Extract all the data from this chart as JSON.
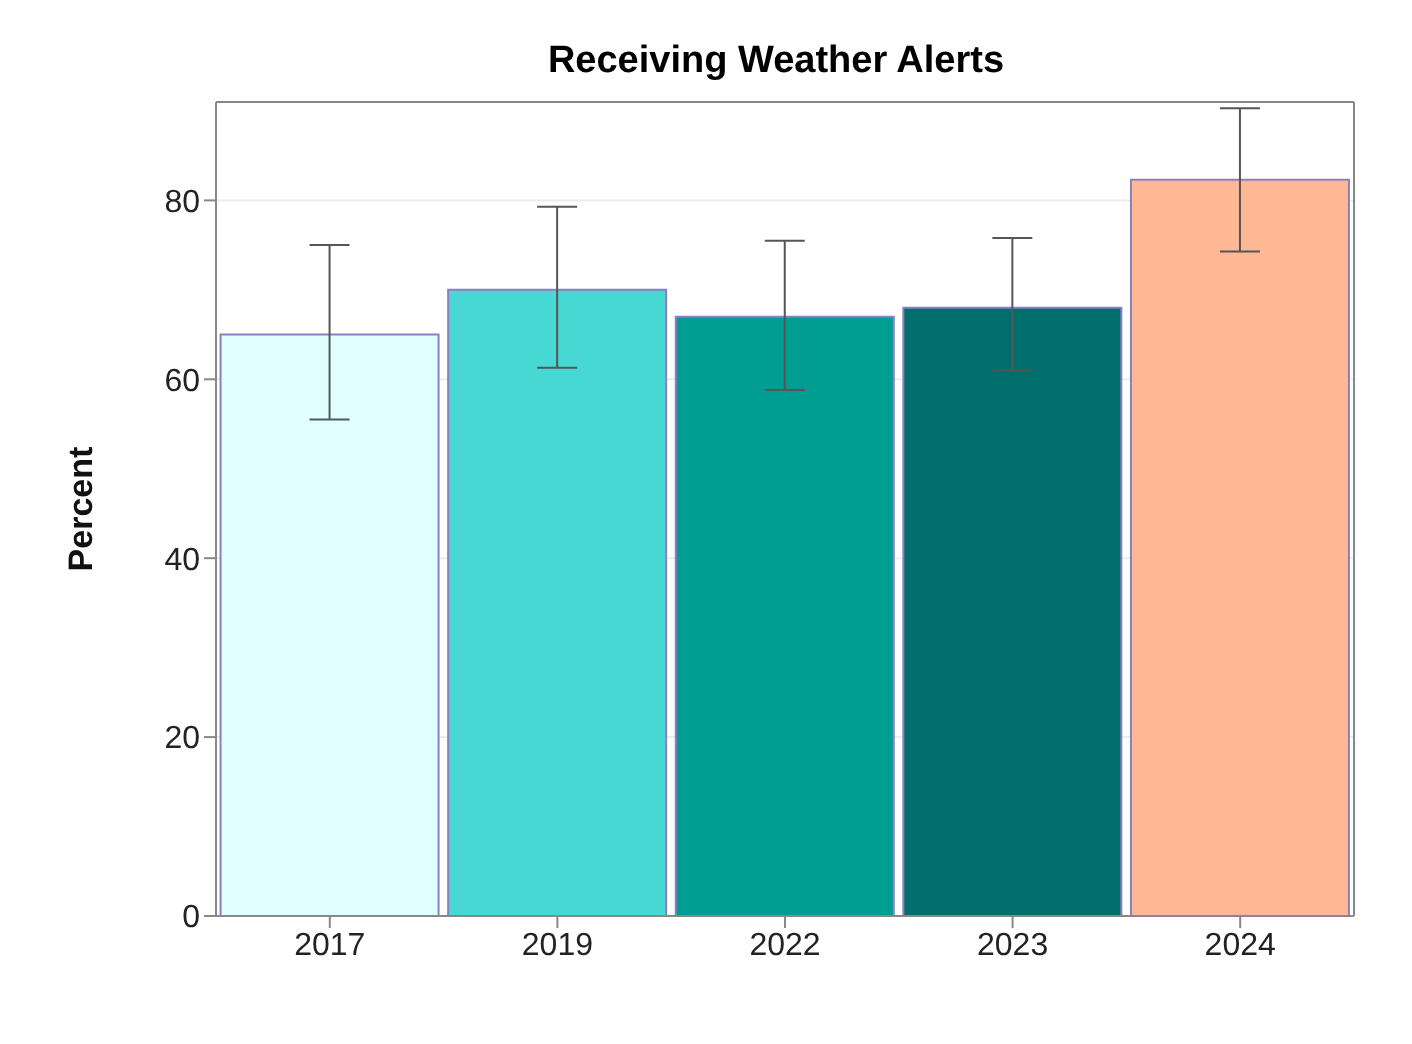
{
  "chart_data": {
    "type": "bar",
    "title": "Receiving Weather Alerts",
    "ylabel": "Percent",
    "categories": [
      "2017",
      "2019",
      "2022",
      "2023",
      "2024"
    ],
    "values": [
      65,
      70,
      67,
      68,
      82.3
    ],
    "colors": [
      "#e0ffff",
      "#48d8d4",
      "#009e92",
      "#006e6a",
      "#ffb894"
    ],
    "errors": [
      [
        55.5,
        75
      ],
      [
        61.3,
        79.3
      ],
      [
        58.8,
        75.5
      ],
      [
        61,
        75.8
      ],
      [
        74.3,
        90.3
      ]
    ],
    "ylim": [
      0,
      91
    ],
    "yticks": [
      0,
      20,
      40,
      60,
      80
    ],
    "grid": "y"
  }
}
